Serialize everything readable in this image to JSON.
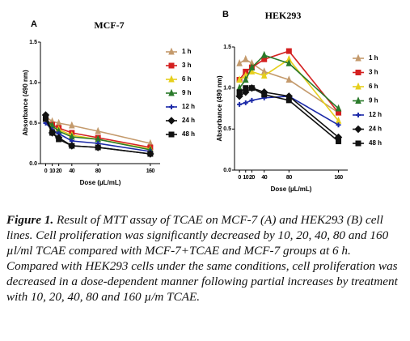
{
  "chart_data": [
    {
      "type": "line",
      "panel": "A",
      "title": "MCF-7",
      "x_label": "Dose (µL/mL)",
      "y_label": "Absorbance (490 nm)",
      "x": [
        0,
        10,
        20,
        40,
        80,
        160
      ],
      "xlim": [
        -8,
        175
      ],
      "xticks": [
        0,
        10,
        20,
        40,
        80,
        160
      ],
      "ylim": [
        0,
        1.5
      ],
      "yticks": [
        {
          "value": 0,
          "label": "0.0"
        },
        0.5,
        {
          "value": 1,
          "label": "1.0"
        },
        1.5
      ],
      "series": [
        {
          "name": "1 h",
          "color": "#c49a6c",
          "values": [
            0.58,
            0.52,
            0.5,
            0.47,
            0.4,
            0.25
          ]
        },
        {
          "name": "3 h",
          "color": "#d42020",
          "values": [
            0.55,
            0.48,
            0.44,
            0.38,
            0.32,
            0.2
          ]
        },
        {
          "name": "6 h",
          "color": "#e6cf1c",
          "values": [
            0.55,
            0.45,
            0.42,
            0.35,
            0.3,
            0.18
          ]
        },
        {
          "name": "9 h",
          "color": "#2a7a2a",
          "values": [
            0.55,
            0.47,
            0.4,
            0.33,
            0.3,
            0.17
          ]
        },
        {
          "name": "12 h",
          "color": "#1c2aa8",
          "values": [
            0.5,
            0.42,
            0.37,
            0.28,
            0.25,
            0.15
          ]
        },
        {
          "name": "24 h",
          "color": "#111111",
          "values": [
            0.6,
            0.38,
            0.32,
            0.22,
            0.2,
            0.12
          ]
        },
        {
          "name": "48 h",
          "color": "#111111",
          "values": [
            0.55,
            0.38,
            0.3,
            0.22,
            0.2,
            0.12
          ]
        }
      ]
    },
    {
      "type": "line",
      "panel": "B",
      "title": "HEK293",
      "x_label": "Dose (µL/mL)",
      "y_label": "Absorbance (490 nm)",
      "x": [
        0,
        10,
        20,
        40,
        80,
        160
      ],
      "xlim": [
        -8,
        175
      ],
      "xticks": [
        0,
        10,
        20,
        40,
        80,
        160
      ],
      "ylim": [
        0,
        1.5
      ],
      "yticks": [
        {
          "value": 0,
          "label": "0.0"
        },
        0.5,
        {
          "value": 1,
          "label": "1.0"
        },
        1.5
      ],
      "series": [
        {
          "name": "1 h",
          "color": "#c49a6c",
          "values": [
            1.3,
            1.35,
            1.3,
            1.2,
            1.1,
            0.7
          ]
        },
        {
          "name": "3 h",
          "color": "#d42020",
          "values": [
            1.1,
            1.2,
            1.25,
            1.35,
            1.45,
            0.7
          ]
        },
        {
          "name": "6 h",
          "color": "#e6cf1c",
          "values": [
            1.1,
            1.15,
            1.2,
            1.15,
            1.35,
            0.6
          ]
        },
        {
          "name": "9 h",
          "color": "#2a7a2a",
          "values": [
            1.0,
            1.1,
            1.25,
            1.4,
            1.3,
            0.75
          ]
        },
        {
          "name": "12 h",
          "color": "#1c2aa8",
          "values": [
            0.8,
            0.82,
            0.85,
            0.88,
            0.9,
            0.55
          ]
        },
        {
          "name": "24 h",
          "color": "#111111",
          "values": [
            0.9,
            0.95,
            1.0,
            0.95,
            0.9,
            0.4
          ]
        },
        {
          "name": "48 h",
          "color": "#111111",
          "values": [
            0.95,
            1.0,
            1.0,
            0.92,
            0.85,
            0.35
          ]
        }
      ]
    }
  ],
  "caption": {
    "label": "Figure 1.",
    "text": "Result of MTT assay of TCAE on MCF-7 (A) and HEK293 (B) cell lines. Cell proliferation was significantly decreased by 10, 20, 40, 80 and 160 µl/ml TCAE compared with MCF-7+TCAE and MCF-7 groups at 6 h. Compared with HEK293 cells under the same conditions, cell proliferation was decreased in a dose-dependent manner following partial increases by treatment with 10, 20, 40, 80 and 160 µ/m TCAE."
  }
}
